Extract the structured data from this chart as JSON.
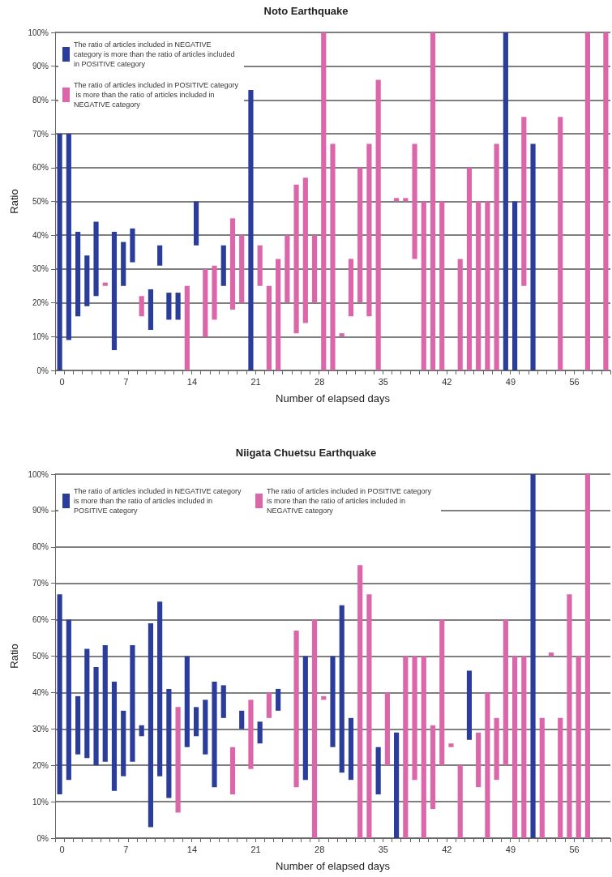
{
  "chart_data": [
    {
      "type": "bar",
      "title": "Noto Earthquake",
      "xlabel": "Number of elapsed days",
      "ylabel": "Ratio",
      "categories": [
        "0",
        null,
        null,
        null,
        null,
        null,
        null,
        "7",
        null,
        null,
        null,
        null,
        null,
        null,
        "14",
        null,
        null,
        null,
        null,
        null,
        null,
        "21",
        null,
        null,
        null,
        null,
        null,
        null,
        "28",
        null,
        null,
        null,
        null,
        null,
        null,
        "35",
        null,
        null,
        null,
        null,
        null,
        null,
        "42",
        null,
        null,
        null,
        null,
        null,
        null,
        "49",
        null,
        null,
        null,
        null,
        null,
        null,
        "56",
        null,
        null,
        null,
        null
      ],
      "ylim": [
        0,
        100
      ],
      "yticks": [
        {
          "value": 0,
          "label": "0%"
        },
        {
          "value": 10,
          "label": "10%"
        },
        {
          "value": 20,
          "label": "20%"
        },
        {
          "value": 30,
          "label": "30%"
        },
        {
          "value": 40,
          "label": "40%"
        },
        {
          "value": 50,
          "label": "50%"
        },
        {
          "value": 60,
          "label": "60%"
        },
        {
          "value": 70,
          "label": "70%"
        },
        {
          "value": 80,
          "label": "80%"
        },
        {
          "value": 90,
          "label": "90%"
        },
        {
          "value": 100,
          "label": "100%"
        }
      ],
      "grid": "y",
      "legend": "top left",
      "series": [
        {
          "name": "The ratio of articles included in NEGATIVE category is more than the ratio of articles included in POSITIVE category",
          "color": "#2b3d9b",
          "values": [
            70,
            61,
            25,
            15,
            22,
            null,
            35,
            13,
            10,
            null,
            12,
            6,
            8,
            8,
            null,
            13,
            null,
            null,
            12,
            null,
            null,
            83,
            null,
            null,
            null,
            null,
            null,
            null,
            null,
            null,
            null,
            null,
            null,
            null,
            null,
            null,
            null,
            null,
            null,
            null,
            null,
            null,
            null,
            null,
            null,
            null,
            null,
            null,
            null,
            100,
            50,
            null,
            67,
            null,
            null,
            null,
            null,
            null,
            null,
            null,
            null
          ],
          "base": [
            0,
            9,
            16,
            19,
            22,
            null,
            6,
            25,
            32,
            null,
            12,
            31,
            15,
            15,
            null,
            37,
            null,
            null,
            25,
            null,
            null,
            0,
            null,
            null,
            null,
            null,
            null,
            null,
            null,
            null,
            null,
            null,
            null,
            null,
            null,
            null,
            null,
            null,
            null,
            null,
            null,
            null,
            null,
            null,
            null,
            null,
            null,
            null,
            null,
            0,
            0,
            null,
            0,
            null,
            null,
            null,
            null,
            null,
            null,
            null,
            null
          ]
        },
        {
          "name": "The ratio of articles included in POSITIVE category is more than the ratio of articles included in NEGATIVE category",
          "color": "#db66aa",
          "values": [
            null,
            null,
            null,
            null,
            null,
            1,
            null,
            null,
            null,
            6,
            null,
            null,
            null,
            null,
            25,
            null,
            20,
            16,
            null,
            27,
            20,
            null,
            12,
            25,
            33,
            20,
            44,
            43,
            20,
            100,
            67,
            1,
            17,
            40,
            51,
            86,
            null,
            1,
            1,
            34,
            50,
            100,
            50,
            null,
            33,
            60,
            50,
            50,
            67,
            null,
            null,
            50,
            null,
            null,
            null,
            75,
            null,
            null,
            100,
            null,
            100
          ],
          "base": [
            null,
            null,
            null,
            null,
            null,
            25,
            null,
            null,
            null,
            16,
            null,
            null,
            null,
            null,
            0,
            null,
            10,
            15,
            null,
            18,
            20,
            null,
            25,
            0,
            0,
            20,
            11,
            14,
            20,
            0,
            0,
            10,
            16,
            20,
            16,
            0,
            null,
            50,
            50,
            33,
            0,
            0,
            0,
            null,
            0,
            0,
            0,
            0,
            0,
            null,
            null,
            25,
            null,
            null,
            null,
            0,
            null,
            null,
            0,
            null,
            0
          ]
        }
      ]
    },
    {
      "type": "bar",
      "title": "Niigata Chuetsu Earthquake",
      "xlabel": "Number of elapsed days",
      "ylabel": "Ratio",
      "categories": [
        "0",
        null,
        null,
        null,
        null,
        null,
        null,
        "7",
        null,
        null,
        null,
        null,
        null,
        null,
        "14",
        null,
        null,
        null,
        null,
        null,
        null,
        "21",
        null,
        null,
        null,
        null,
        null,
        null,
        "28",
        null,
        null,
        null,
        null,
        null,
        null,
        "35",
        null,
        null,
        null,
        null,
        null,
        null,
        "42",
        null,
        null,
        null,
        null,
        null,
        null,
        "49",
        null,
        null,
        null,
        null,
        null,
        null,
        "56",
        null,
        null,
        null,
        null
      ],
      "ylim": [
        0,
        100
      ],
      "yticks": [
        {
          "value": 0,
          "label": "0%"
        },
        {
          "value": 10,
          "label": "10%"
        },
        {
          "value": 20,
          "label": "20%"
        },
        {
          "value": 30,
          "label": "30%"
        },
        {
          "value": 40,
          "label": "40%"
        },
        {
          "value": 50,
          "label": "50%"
        },
        {
          "value": 60,
          "label": "60%"
        },
        {
          "value": 70,
          "label": "70%"
        },
        {
          "value": 80,
          "label": "80%"
        },
        {
          "value": 90,
          "label": "90%"
        },
        {
          "value": 100,
          "label": "100%"
        }
      ],
      "grid": "y",
      "legend": "top",
      "series": [
        {
          "name": "The ratio of articles included in NEGATIVE category is more than the ratio of articles included in POSITIVE category",
          "color": "#2b3d9b",
          "values": [
            55,
            44,
            16,
            30,
            27,
            32,
            30,
            18,
            32,
            3,
            56,
            48,
            30,
            null,
            25,
            8,
            15,
            29,
            9,
            null,
            5,
            null,
            6,
            null,
            6,
            null,
            null,
            34,
            null,
            null,
            25,
            46,
            17,
            null,
            null,
            13,
            null,
            29,
            null,
            null,
            null,
            null,
            null,
            null,
            null,
            19,
            null,
            null,
            null,
            null,
            null,
            null,
            100,
            null,
            null,
            null,
            null,
            null,
            null,
            null,
            null
          ],
          "base": [
            12,
            16,
            23,
            22,
            20,
            21,
            13,
            17,
            21,
            28,
            3,
            17,
            11,
            null,
            25,
            28,
            23,
            14,
            33,
            null,
            30,
            null,
            26,
            null,
            35,
            null,
            null,
            16,
            null,
            null,
            25,
            18,
            16,
            null,
            null,
            12,
            null,
            0,
            null,
            null,
            null,
            null,
            null,
            null,
            null,
            27,
            null,
            null,
            null,
            null,
            null,
            null,
            0,
            null,
            null,
            null,
            null,
            null,
            null,
            null,
            null
          ]
        },
        {
          "name": "The ratio of articles included in POSITIVE category is more than the ratio of articles included in NEGATIVE category",
          "color": "#db66aa",
          "values": [
            null,
            null,
            null,
            null,
            null,
            null,
            null,
            null,
            null,
            null,
            null,
            null,
            null,
            29,
            null,
            null,
            null,
            null,
            null,
            13,
            null,
            19,
            null,
            7,
            null,
            null,
            43,
            null,
            60,
            1,
            null,
            null,
            null,
            75,
            67,
            null,
            20,
            null,
            50,
            34,
            50,
            23,
            40,
            1,
            20,
            null,
            15,
            40,
            17,
            40,
            50,
            50,
            null,
            33,
            1,
            33,
            67,
            50,
            100,
            null,
            null
          ],
          "base": [
            null,
            null,
            null,
            null,
            null,
            null,
            null,
            null,
            null,
            null,
            null,
            null,
            null,
            7,
            null,
            null,
            null,
            null,
            null,
            12,
            null,
            19,
            null,
            33,
            null,
            null,
            14,
            null,
            0,
            38,
            null,
            null,
            null,
            0,
            0,
            null,
            20,
            null,
            0,
            16,
            0,
            8,
            20,
            25,
            0,
            null,
            14,
            0,
            16,
            20,
            0,
            0,
            null,
            0,
            50,
            0,
            0,
            0,
            0,
            null,
            null
          ]
        }
      ]
    }
  ]
}
